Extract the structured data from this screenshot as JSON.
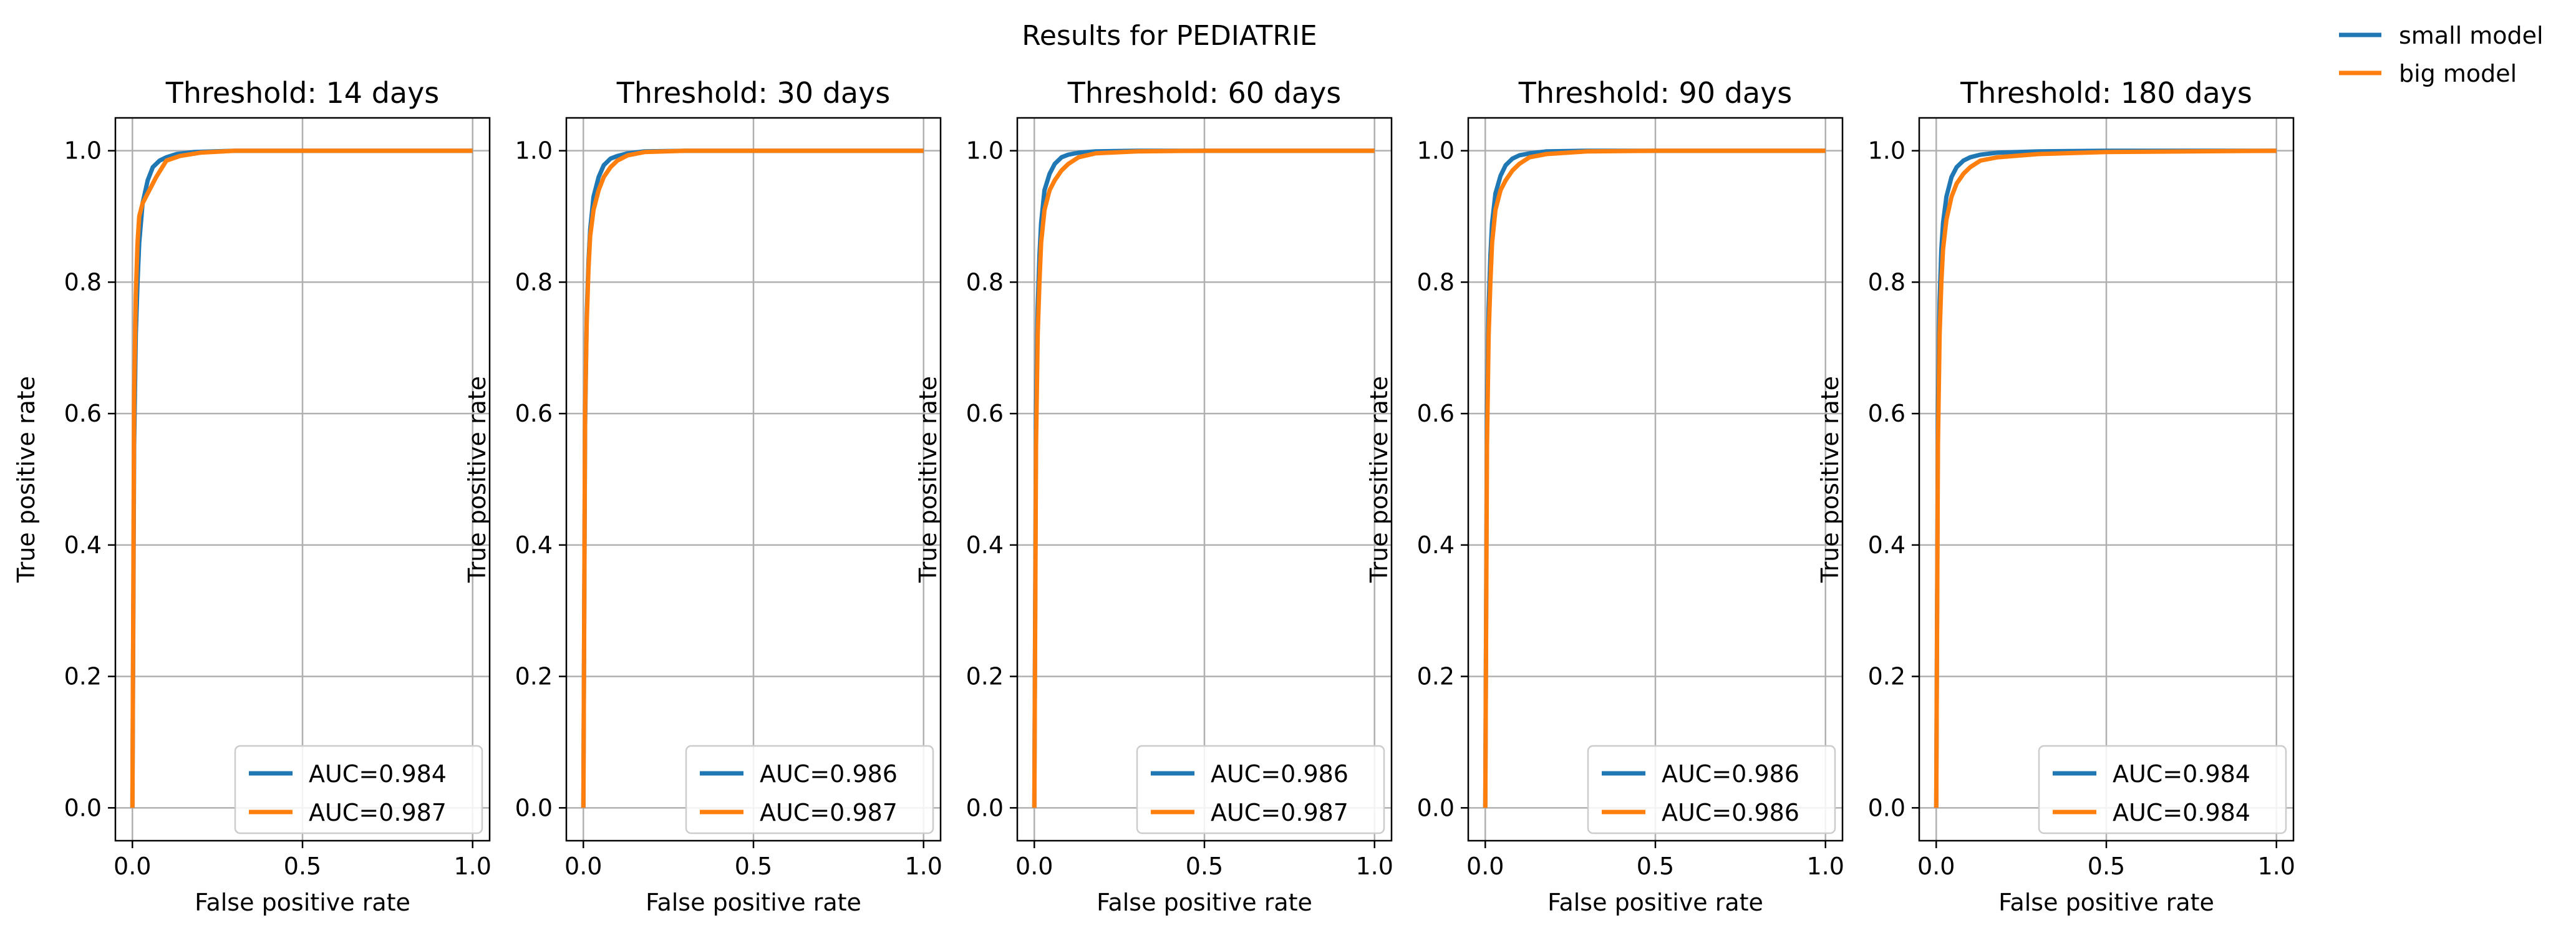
{
  "figure": {
    "suptitle": "Results for PEDIATRIE",
    "legend": {
      "placement": "top-right, outside plot area",
      "entries": [
        {
          "label": "small model",
          "color": "#1f77b4"
        },
        {
          "label": "big model",
          "color": "#ff7f0e"
        }
      ]
    }
  },
  "chart_data": [
    {
      "type": "line",
      "title": "Threshold: 14 days",
      "xlabel": "False positive rate",
      "ylabel": "True positive rate",
      "xlim": [
        -0.05,
        1.05
      ],
      "ylim": [
        -0.05,
        1.05
      ],
      "xticks": [
        "0.0",
        "0.5",
        "1.0"
      ],
      "yticks": [
        "0.0",
        "0.2",
        "0.4",
        "0.6",
        "0.8",
        "1.0"
      ],
      "grid": true,
      "legend_placement": "lower right",
      "series": [
        {
          "name": "AUC=0.984",
          "color": "#1f77b4",
          "x": [
            0,
            0.005,
            0.01,
            0.015,
            0.02,
            0.03,
            0.045,
            0.06,
            0.08,
            0.1,
            0.13,
            0.18,
            0.3,
            0.5,
            1.0
          ],
          "y": [
            0,
            0.55,
            0.72,
            0.8,
            0.86,
            0.92,
            0.955,
            0.975,
            0.985,
            0.99,
            0.995,
            0.998,
            1.0,
            1.0,
            1.0
          ]
        },
        {
          "name": "AUC=0.987",
          "color": "#ff7f0e",
          "x": [
            0,
            0.005,
            0.01,
            0.015,
            0.02,
            0.03,
            0.05,
            0.07,
            0.1,
            0.14,
            0.2,
            0.3,
            0.5,
            1.0
          ],
          "y": [
            0,
            0.62,
            0.78,
            0.86,
            0.9,
            0.92,
            0.94,
            0.96,
            0.985,
            0.992,
            0.997,
            1.0,
            1.0,
            1.0
          ]
        }
      ]
    },
    {
      "type": "line",
      "title": "Threshold: 30 days",
      "xlabel": "False positive rate",
      "ylabel": "True positive rate",
      "xlim": [
        -0.05,
        1.05
      ],
      "ylim": [
        -0.05,
        1.05
      ],
      "xticks": [
        "0.0",
        "0.5",
        "1.0"
      ],
      "yticks": [
        "0.0",
        "0.2",
        "0.4",
        "0.6",
        "0.8",
        "1.0"
      ],
      "grid": true,
      "legend_placement": "lower right",
      "series": [
        {
          "name": "AUC=0.986",
          "color": "#1f77b4",
          "x": [
            0,
            0.005,
            0.01,
            0.015,
            0.02,
            0.03,
            0.045,
            0.06,
            0.08,
            0.1,
            0.13,
            0.18,
            0.3,
            0.5,
            1.0
          ],
          "y": [
            0,
            0.58,
            0.75,
            0.83,
            0.88,
            0.93,
            0.96,
            0.978,
            0.988,
            0.992,
            0.996,
            0.999,
            1.0,
            1.0,
            1.0
          ]
        },
        {
          "name": "AUC=0.987",
          "color": "#ff7f0e",
          "x": [
            0,
            0.005,
            0.01,
            0.015,
            0.02,
            0.03,
            0.045,
            0.06,
            0.08,
            0.1,
            0.13,
            0.18,
            0.3,
            0.5,
            1.0
          ],
          "y": [
            0,
            0.6,
            0.74,
            0.82,
            0.87,
            0.91,
            0.94,
            0.96,
            0.975,
            0.985,
            0.993,
            0.998,
            1.0,
            1.0,
            1.0
          ]
        }
      ]
    },
    {
      "type": "line",
      "title": "Threshold: 60 days",
      "xlabel": "False positive rate",
      "ylabel": "True positive rate",
      "xlim": [
        -0.05,
        1.05
      ],
      "ylim": [
        -0.05,
        1.05
      ],
      "xticks": [
        "0.0",
        "0.5",
        "1.0"
      ],
      "yticks": [
        "0.0",
        "0.2",
        "0.4",
        "0.6",
        "0.8",
        "1.0"
      ],
      "grid": true,
      "legend_placement": "lower right",
      "series": [
        {
          "name": "AUC=0.986",
          "color": "#1f77b4",
          "x": [
            0,
            0.005,
            0.01,
            0.015,
            0.02,
            0.03,
            0.045,
            0.06,
            0.08,
            0.1,
            0.13,
            0.18,
            0.3,
            0.5,
            1.0
          ],
          "y": [
            0,
            0.6,
            0.76,
            0.84,
            0.89,
            0.94,
            0.965,
            0.98,
            0.99,
            0.994,
            0.997,
            0.999,
            1.0,
            1.0,
            1.0
          ]
        },
        {
          "name": "AUC=0.987",
          "color": "#ff7f0e",
          "x": [
            0,
            0.005,
            0.01,
            0.015,
            0.02,
            0.03,
            0.045,
            0.06,
            0.08,
            0.1,
            0.13,
            0.18,
            0.3,
            0.5,
            1.0
          ],
          "y": [
            0,
            0.55,
            0.72,
            0.8,
            0.86,
            0.91,
            0.94,
            0.955,
            0.97,
            0.98,
            0.99,
            0.996,
            0.999,
            1.0,
            1.0
          ]
        }
      ]
    },
    {
      "type": "line",
      "title": "Threshold: 90 days",
      "xlabel": "False positive rate",
      "ylabel": "True positive rate",
      "xlim": [
        -0.05,
        1.05
      ],
      "ylim": [
        -0.05,
        1.05
      ],
      "xticks": [
        "0.0",
        "0.5",
        "1.0"
      ],
      "yticks": [
        "0.0",
        "0.2",
        "0.4",
        "0.6",
        "0.8",
        "1.0"
      ],
      "grid": true,
      "legend_placement": "lower right",
      "series": [
        {
          "name": "AUC=0.986",
          "color": "#1f77b4",
          "x": [
            0,
            0.005,
            0.01,
            0.015,
            0.02,
            0.03,
            0.045,
            0.06,
            0.08,
            0.1,
            0.13,
            0.18,
            0.3,
            0.5,
            1.0
          ],
          "y": [
            0,
            0.6,
            0.76,
            0.84,
            0.89,
            0.935,
            0.962,
            0.978,
            0.988,
            0.993,
            0.996,
            0.999,
            1.0,
            1.0,
            1.0
          ]
        },
        {
          "name": "AUC=0.986",
          "color": "#ff7f0e",
          "x": [
            0,
            0.005,
            0.01,
            0.015,
            0.02,
            0.03,
            0.045,
            0.06,
            0.08,
            0.1,
            0.13,
            0.18,
            0.3,
            0.5,
            1.0
          ],
          "y": [
            0,
            0.55,
            0.72,
            0.8,
            0.86,
            0.91,
            0.94,
            0.955,
            0.97,
            0.98,
            0.99,
            0.995,
            0.999,
            1.0,
            1.0
          ]
        }
      ]
    },
    {
      "type": "line",
      "title": "Threshold: 180 days",
      "xlabel": "False positive rate",
      "ylabel": "True positive rate",
      "xlim": [
        -0.05,
        1.05
      ],
      "ylim": [
        -0.05,
        1.05
      ],
      "xticks": [
        "0.0",
        "0.5",
        "1.0"
      ],
      "yticks": [
        "0.0",
        "0.2",
        "0.4",
        "0.6",
        "0.8",
        "1.0"
      ],
      "grid": true,
      "legend_placement": "lower right",
      "series": [
        {
          "name": "AUC=0.984",
          "color": "#1f77b4",
          "x": [
            0,
            0.005,
            0.01,
            0.015,
            0.02,
            0.03,
            0.045,
            0.06,
            0.08,
            0.1,
            0.13,
            0.18,
            0.3,
            0.5,
            1.0
          ],
          "y": [
            0,
            0.6,
            0.77,
            0.85,
            0.89,
            0.93,
            0.96,
            0.975,
            0.985,
            0.99,
            0.994,
            0.997,
            0.999,
            1.0,
            1.0
          ]
        },
        {
          "name": "AUC=0.984",
          "color": "#ff7f0e",
          "x": [
            0,
            0.005,
            0.01,
            0.015,
            0.02,
            0.03,
            0.045,
            0.06,
            0.08,
            0.1,
            0.13,
            0.18,
            0.3,
            0.5,
            1.0
          ],
          "y": [
            0,
            0.55,
            0.72,
            0.8,
            0.85,
            0.895,
            0.93,
            0.95,
            0.965,
            0.975,
            0.985,
            0.99,
            0.995,
            0.998,
            1.0
          ]
        }
      ]
    }
  ]
}
